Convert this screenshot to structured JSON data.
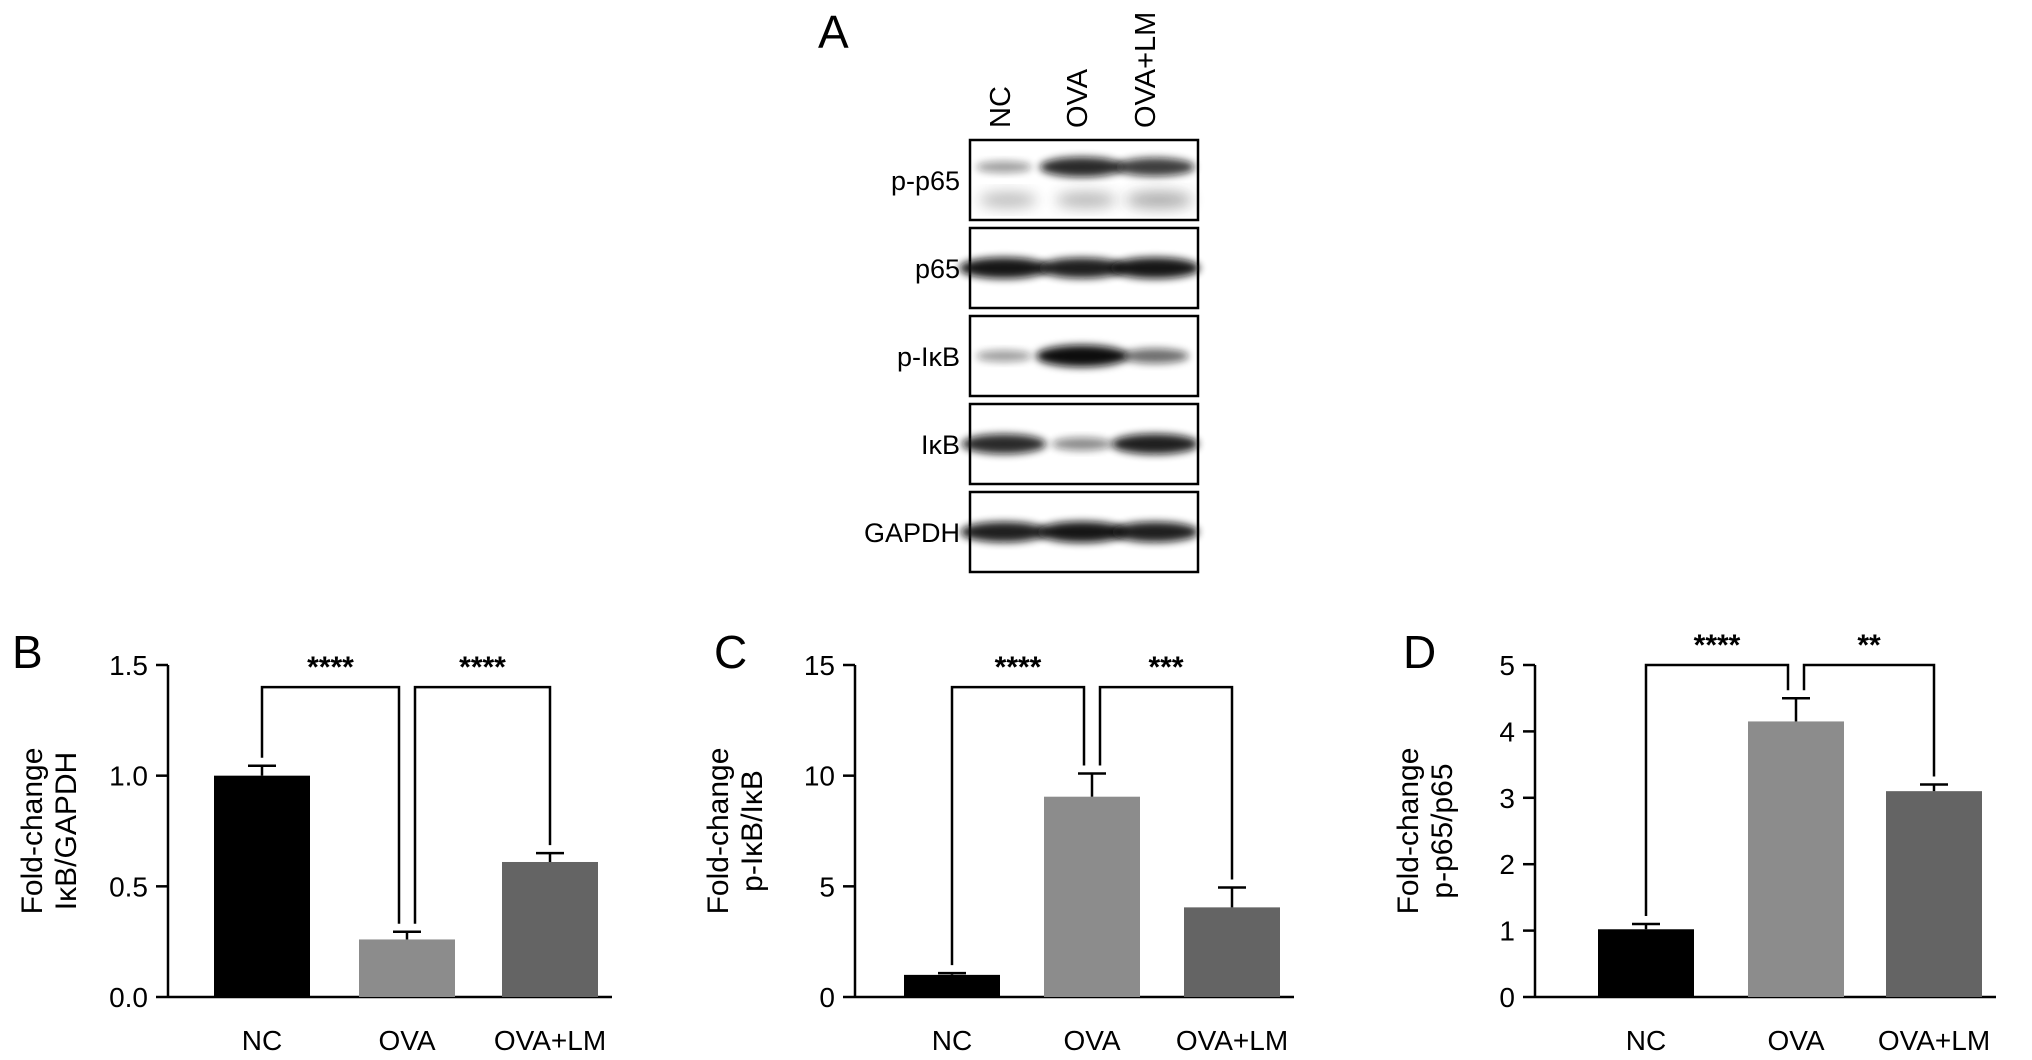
{
  "panel_a": {
    "letter": "A",
    "lanes": [
      "NC",
      "OVA",
      "OVA+LM"
    ],
    "blots": [
      {
        "label": "p-p65",
        "bands": [
          0.25,
          0.85,
          0.75
        ],
        "second_row": [
          0.3,
          0.35,
          0.45
        ]
      },
      {
        "label": "p65",
        "bands": [
          0.95,
          0.9,
          0.95
        ]
      },
      {
        "label": "p-IκB",
        "bands": [
          0.25,
          1.0,
          0.5
        ]
      },
      {
        "label": "IκB",
        "bands": [
          0.85,
          0.35,
          0.9
        ]
      },
      {
        "label": "GAPDH",
        "bands": [
          0.9,
          0.95,
          0.9
        ]
      }
    ]
  },
  "chart_data": [
    {
      "type": "bar",
      "panel": "B",
      "categories": [
        "NC",
        "OVA",
        "OVA+LM"
      ],
      "values": [
        1.0,
        0.26,
        0.61
      ],
      "errors": [
        0.045,
        0.035,
        0.04
      ],
      "colors": [
        "#000000",
        "#8c8c8c",
        "#646464"
      ],
      "ylabel_line1": "Fold-change",
      "ylabel_line2": "IκB/GAPDH",
      "ylim": [
        0,
        1.5
      ],
      "yticks": [
        "0.0",
        "0.5",
        "1.0",
        "1.5"
      ],
      "ytick_values": [
        0,
        0.5,
        1.0,
        1.5
      ],
      "comparisons": [
        {
          "from": 0,
          "to": 1,
          "label": "****",
          "y": 1.4
        },
        {
          "from": 1,
          "to": 2,
          "label": "****",
          "y": 1.4
        }
      ]
    },
    {
      "type": "bar",
      "panel": "C",
      "categories": [
        "NC",
        "OVA",
        "OVA+LM"
      ],
      "values": [
        1.0,
        9.05,
        4.05
      ],
      "errors": [
        0.08,
        1.05,
        0.9
      ],
      "colors": [
        "#000000",
        "#8c8c8c",
        "#646464"
      ],
      "ylabel_line1": "Fold-change",
      "ylabel_line2": "p-IκB/IκB",
      "ylim": [
        0,
        15
      ],
      "yticks": [
        "0",
        "5",
        "10",
        "15"
      ],
      "ytick_values": [
        0,
        5,
        10,
        15
      ],
      "comparisons": [
        {
          "from": 0,
          "to": 1,
          "label": "****",
          "y": 14
        },
        {
          "from": 1,
          "to": 2,
          "label": "***",
          "y": 14
        }
      ]
    },
    {
      "type": "bar",
      "panel": "D",
      "categories": [
        "NC",
        "OVA",
        "OVA+LM"
      ],
      "values": [
        1.02,
        4.15,
        3.1
      ],
      "errors": [
        0.08,
        0.35,
        0.1
      ],
      "colors": [
        "#000000",
        "#8c8c8c",
        "#646464"
      ],
      "ylabel_line1": "Fold-change",
      "ylabel_line2": "p-p65/p65",
      "ylim": [
        0,
        5
      ],
      "yticks": [
        "0",
        "1",
        "2",
        "3",
        "4",
        "5"
      ],
      "ytick_values": [
        0,
        1,
        2,
        3,
        4,
        5
      ],
      "comparisons": [
        {
          "from": 0,
          "to": 1,
          "label": "****",
          "y": 5
        },
        {
          "from": 1,
          "to": 2,
          "label": "**",
          "y": 5
        }
      ]
    }
  ]
}
